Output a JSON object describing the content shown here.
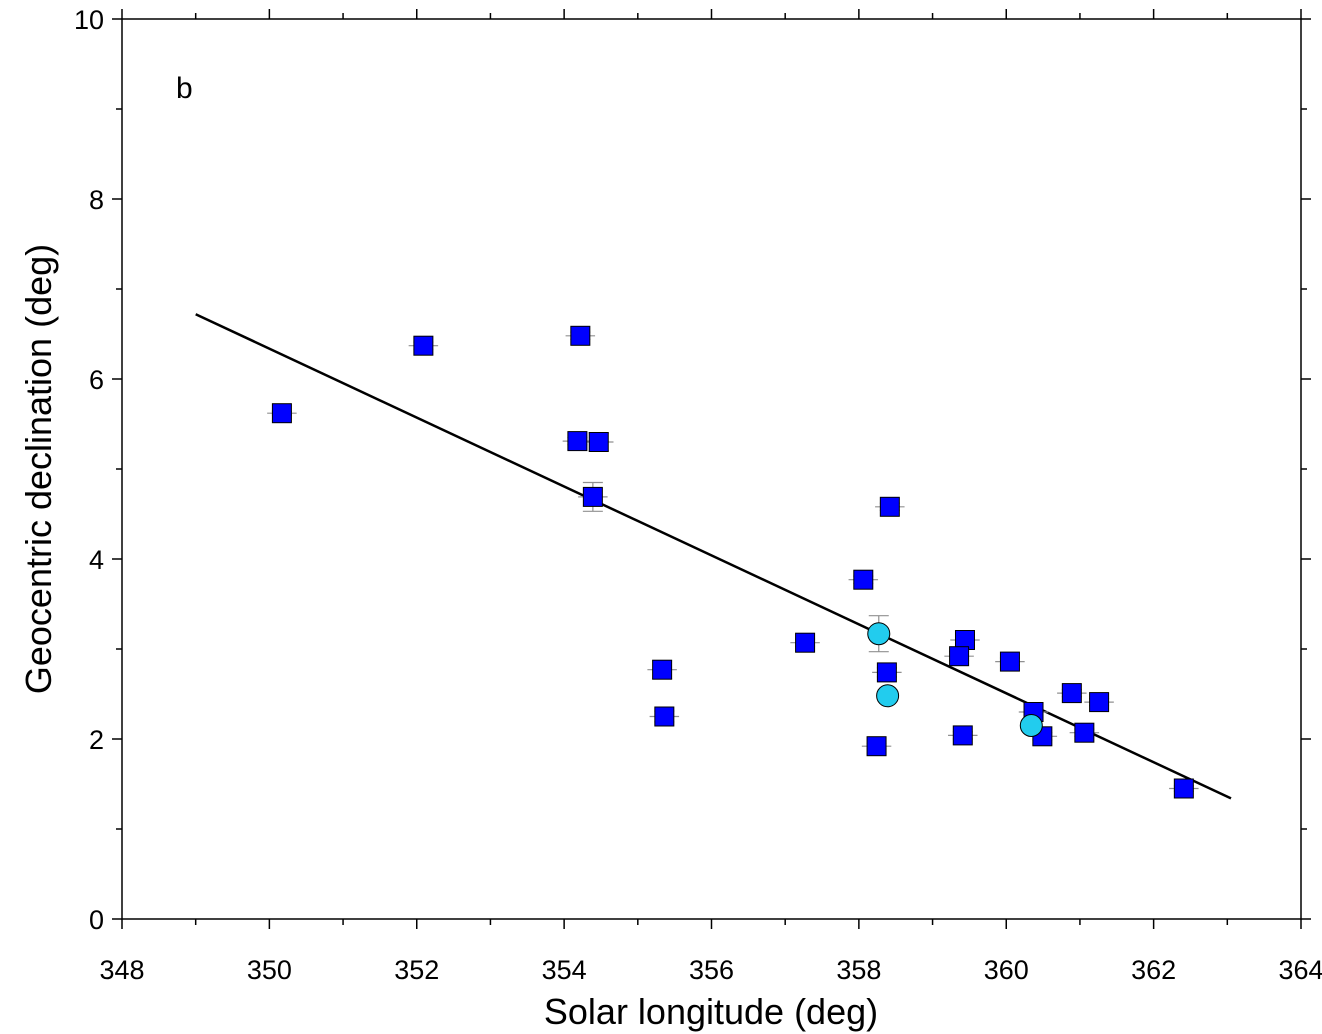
{
  "chart_data": {
    "type": "scatter",
    "panel_label": "b",
    "xlabel": "Solar longitude (deg)",
    "ylabel": "Geocentric declination (deg)",
    "xlim": [
      348,
      364
    ],
    "ylim": [
      0,
      10
    ],
    "x_ticks": [
      348,
      350,
      352,
      354,
      356,
      358,
      360,
      362,
      364
    ],
    "x_tick_labels": [
      "348",
      "350",
      "352",
      "354",
      "356",
      "358",
      "360",
      "362",
      "364"
    ],
    "y_ticks": [
      0,
      2,
      4,
      6,
      8,
      10
    ],
    "y_tick_labels": [
      "0",
      "2",
      "4",
      "6",
      "8",
      "10"
    ],
    "x_minor_step": 1,
    "y_minor_step": 1,
    "grid": false,
    "colors": {
      "squares": "#0000ff",
      "circles": "#22ccee",
      "fit_line": "#000000",
      "error_bars": "#909090"
    },
    "series": [
      {
        "name": "squares",
        "marker": "square",
        "points": [
          {
            "x": 350.17,
            "y": 5.62,
            "xerr": 0.2,
            "yerr": 0.02
          },
          {
            "x": 352.09,
            "y": 6.37,
            "xerr": 0.2,
            "yerr": 0.04
          },
          {
            "x": 354.22,
            "y": 6.48,
            "xerr": 0.2,
            "yerr": 0.04
          },
          {
            "x": 354.18,
            "y": 5.31,
            "xerr": 0.2,
            "yerr": 0.04
          },
          {
            "x": 354.47,
            "y": 5.3,
            "xerr": 0.2,
            "yerr": 0.1
          },
          {
            "x": 354.39,
            "y": 4.69,
            "xerr": 0.2,
            "yerr": 0.16
          },
          {
            "x": 355.33,
            "y": 2.77,
            "xerr": 0.2,
            "yerr": 0.1
          },
          {
            "x": 355.36,
            "y": 2.25,
            "xerr": 0.2,
            "yerr": 0.06
          },
          {
            "x": 357.27,
            "y": 3.07,
            "xerr": 0.2,
            "yerr": 0.04
          },
          {
            "x": 358.06,
            "y": 3.77,
            "xerr": 0.2,
            "yerr": 0.04
          },
          {
            "x": 358.42,
            "y": 4.58,
            "xerr": 0.2,
            "yerr": 0.04
          },
          {
            "x": 358.38,
            "y": 2.74,
            "xerr": 0.2,
            "yerr": 0.05
          },
          {
            "x": 358.24,
            "y": 1.92,
            "xerr": 0.2,
            "yerr": 0.03
          },
          {
            "x": 359.44,
            "y": 3.1,
            "xerr": 0.2,
            "yerr": 0.06
          },
          {
            "x": 359.36,
            "y": 2.92,
            "xerr": 0.2,
            "yerr": 0.05
          },
          {
            "x": 359.41,
            "y": 2.04,
            "xerr": 0.2,
            "yerr": 0.04
          },
          {
            "x": 360.05,
            "y": 2.86,
            "xerr": 0.2,
            "yerr": 0.04
          },
          {
            "x": 360.37,
            "y": 2.3,
            "xerr": 0.2,
            "yerr": 0.06
          },
          {
            "x": 360.49,
            "y": 2.03,
            "xerr": 0.2,
            "yerr": 0.04
          },
          {
            "x": 360.89,
            "y": 2.51,
            "xerr": 0.2,
            "yerr": 0.04
          },
          {
            "x": 361.06,
            "y": 2.07,
            "xerr": 0.2,
            "yerr": 0.04
          },
          {
            "x": 361.26,
            "y": 2.41,
            "xerr": 0.2,
            "yerr": 0.04
          },
          {
            "x": 362.41,
            "y": 1.45,
            "xerr": 0.2,
            "yerr": 0.03
          }
        ]
      },
      {
        "name": "circles",
        "marker": "circle",
        "points": [
          {
            "x": 358.27,
            "y": 3.17,
            "xerr": 0.15,
            "yerr": 0.2
          },
          {
            "x": 358.39,
            "y": 2.48,
            "xerr": 0.15,
            "yerr": 0.06
          },
          {
            "x": 360.34,
            "y": 2.15,
            "xerr": 0.15,
            "yerr": 0.06
          }
        ]
      }
    ],
    "fit_line": {
      "x": [
        349.0,
        363.05
      ],
      "y": [
        6.72,
        1.34
      ]
    }
  }
}
